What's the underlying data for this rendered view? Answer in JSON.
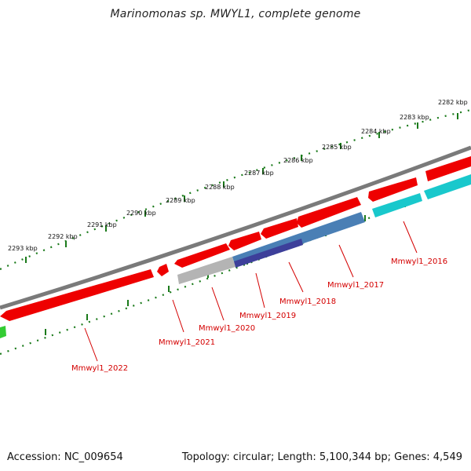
{
  "title": "Marinomonas sp. MWYL1, complete genome",
  "footer": {
    "accession": "Accession: NC_009654",
    "summary": "Topology: circular; Length: 5,100,344 bp; Genes: 4,549"
  },
  "colors": {
    "backbone": "#808080",
    "scale_ticks": "#1a7a1a",
    "gene_red": "#ee0000",
    "gene_cyan": "#19c8cc",
    "gene_grey": "#b4b4b4",
    "gene_steelblue": "#4a7fb5",
    "gene_navy": "#3d3f9a",
    "gene_green": "#33cc33",
    "label_red": "#d40000"
  },
  "scale_labels": [
    "2282 kbp",
    "2283 kbp",
    "2284 kbp",
    "2285 kbp",
    "2286 kbp",
    "2287 kbp",
    "2288 kbp",
    "2289 kbp",
    "2290 kbp",
    "2291 kbp",
    "2292 kbp",
    "2293 kbp"
  ],
  "gene_labels": [
    "Mmwyl1_2016",
    "Mmwyl1_2017",
    "Mmwyl1_2018",
    "Mmwyl1_2019",
    "Mmwyl1_2020",
    "Mmwyl1_2021",
    "Mmwyl1_2022"
  ]
}
